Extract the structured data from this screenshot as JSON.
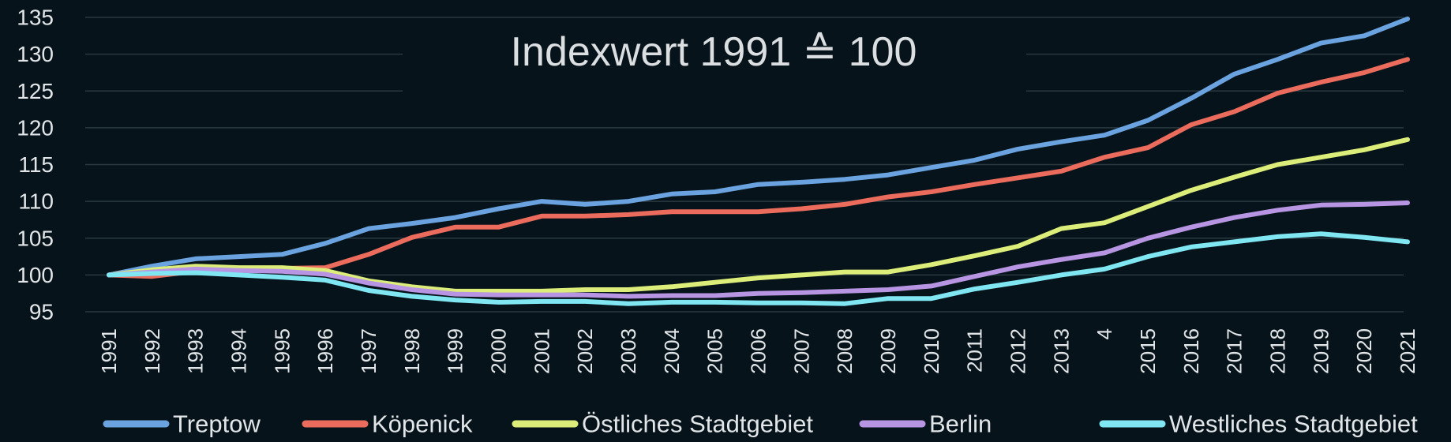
{
  "chart_data": {
    "type": "line",
    "title": "Indexwert 1991 ≙ 100",
    "xlabel": "",
    "ylabel": "",
    "ylim": [
      95,
      135
    ],
    "yticks": [
      95,
      100,
      105,
      110,
      115,
      120,
      125,
      130,
      135
    ],
    "grid": true,
    "legend_position": "bottom",
    "categories": [
      "1991",
      "1992",
      "1993",
      "1994",
      "1995",
      "1996",
      "1997",
      "1998",
      "1999",
      "2000",
      "2001",
      "2002",
      "2003",
      "2004",
      "2005",
      "2006",
      "2007",
      "2008",
      "2009",
      "2010",
      "2011",
      "2012",
      "2013",
      "4",
      "2015",
      "2016",
      "2017",
      "2018",
      "2019",
      "2020",
      "2021"
    ],
    "series": [
      {
        "name": "Treptow",
        "color": "#6aa3df",
        "values": [
          100,
          101.2,
          102.2,
          102.5,
          102.8,
          104.3,
          106.3,
          107,
          107.8,
          109,
          110,
          109.6,
          110,
          111,
          111.3,
          112.3,
          112.6,
          113,
          113.6,
          114.6,
          115.6,
          117.1,
          118.1,
          119,
          121,
          124,
          127.3,
          129.3,
          131.5,
          132.5,
          134.8
        ]
      },
      {
        "name": "Köpenick",
        "color": "#eb6b5c",
        "values": [
          100,
          99.8,
          100.5,
          100.8,
          100.9,
          101,
          102.8,
          105.1,
          106.5,
          106.5,
          108,
          108,
          108.2,
          108.6,
          108.6,
          108.6,
          109,
          109.6,
          110.6,
          111.3,
          112.3,
          113.2,
          114.1,
          116,
          117.3,
          120.4,
          122.2,
          124.7,
          126.2,
          127.5,
          129.3
        ]
      },
      {
        "name": "Östliches Stadtgebiet",
        "color": "#dcee79",
        "values": [
          100,
          100.7,
          101.2,
          101,
          101,
          100.6,
          99.2,
          98.4,
          97.8,
          97.8,
          97.8,
          98,
          98,
          98.4,
          99,
          99.6,
          100,
          100.4,
          100.4,
          101.4,
          102.6,
          103.9,
          106.3,
          107.1,
          109.3,
          111.5,
          113.3,
          115,
          116,
          117,
          118.4
        ]
      },
      {
        "name": "Berlin",
        "color": "#b795e2",
        "values": [
          100,
          100.4,
          100.8,
          100.6,
          100.5,
          100.1,
          98.9,
          98,
          97.4,
          97.3,
          97.3,
          97.3,
          97.1,
          97.2,
          97.2,
          97.5,
          97.6,
          97.8,
          98,
          98.5,
          99.8,
          101.1,
          102.1,
          103,
          105,
          106.5,
          107.8,
          108.8,
          109.5,
          109.6,
          109.8
        ]
      },
      {
        "name": "Westliches Stadtgebiet",
        "color": "#7fe6f2",
        "values": [
          100,
          100.2,
          100.3,
          100,
          99.7,
          99.3,
          97.9,
          97.1,
          96.6,
          96.3,
          96.4,
          96.4,
          96.1,
          96.3,
          96.3,
          96.2,
          96.2,
          96.1,
          96.8,
          96.8,
          98.1,
          99,
          100,
          100.8,
          102.5,
          103.8,
          104.5,
          105.2,
          105.6,
          105.1,
          104.5
        ]
      }
    ]
  }
}
